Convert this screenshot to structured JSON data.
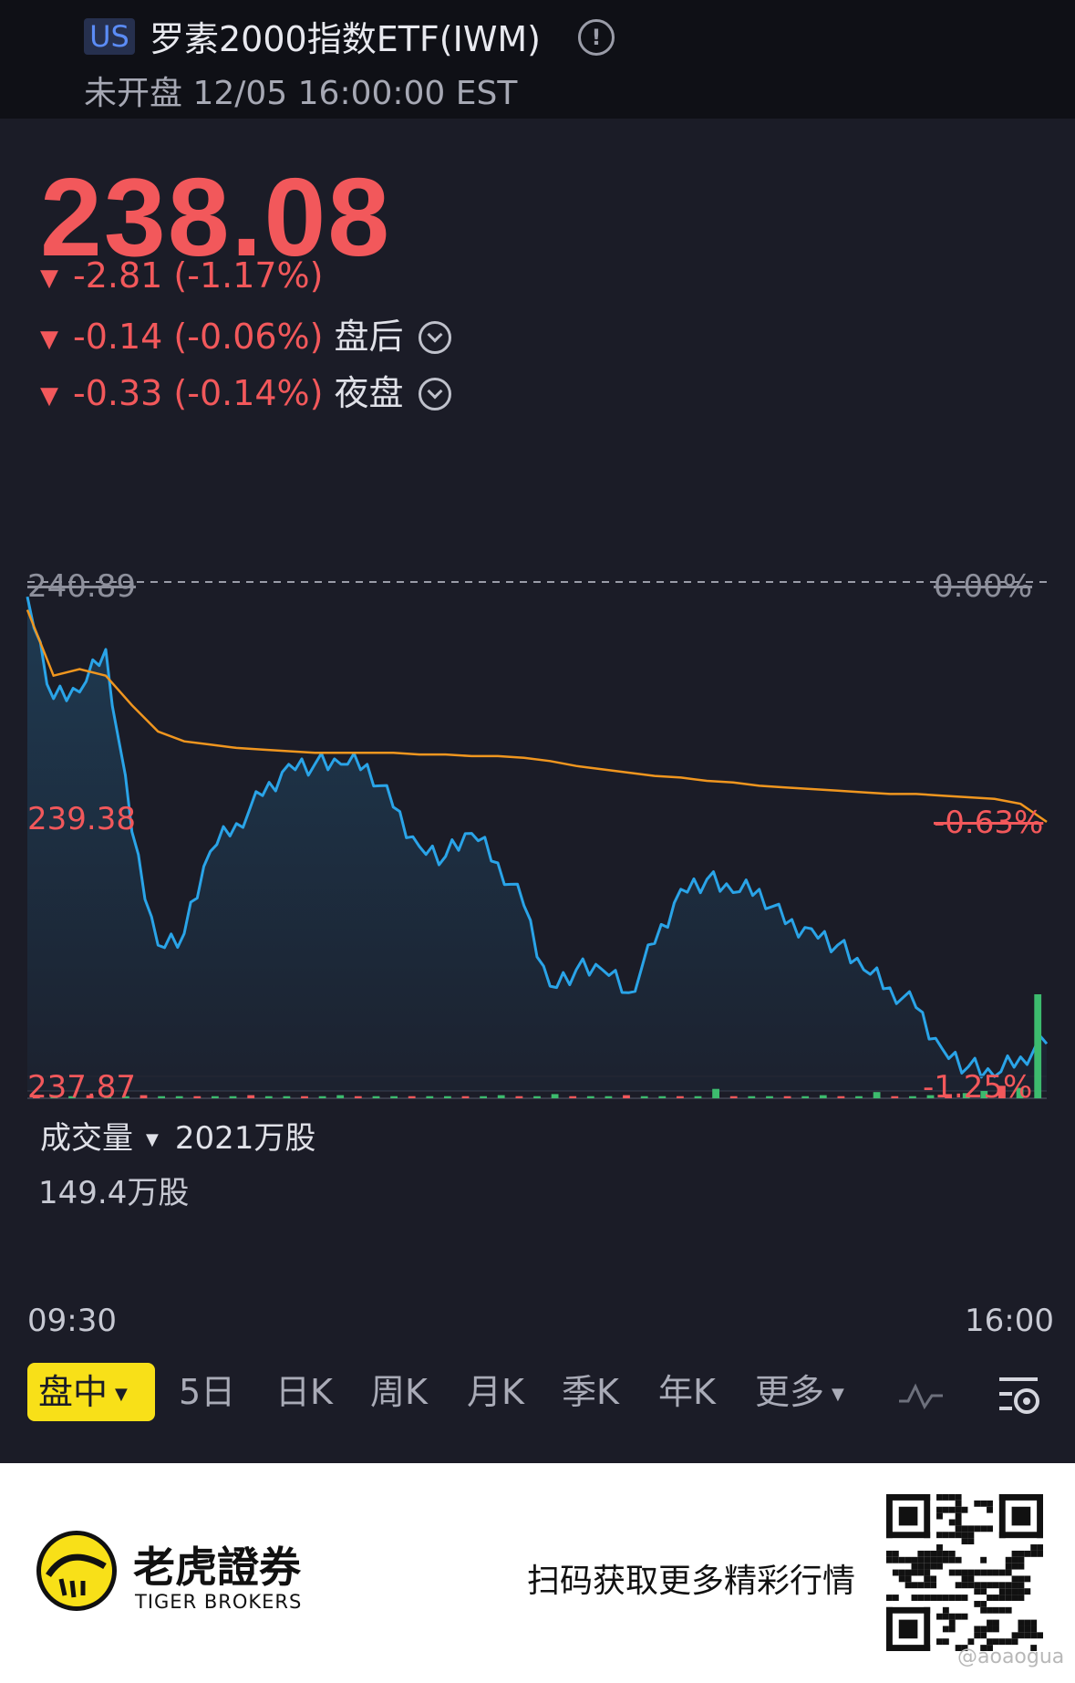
{
  "header": {
    "market_badge": "US",
    "title": "罗素2000指数ETF(IWM)",
    "info_icon": "info-circle-icon",
    "status_time": "未开盘 12/05 16:00:00 EST"
  },
  "quote": {
    "price": "238.08",
    "change": "-2.81 (-1.17%)",
    "after_hours_change": "-0.14 (-0.06%)",
    "after_hours_label": "盘后",
    "overnight_change": "-0.33 (-0.14%)",
    "overnight_label": "夜盘",
    "down_color": "#f2585b"
  },
  "chart_data": {
    "type": "line",
    "y_left_ticks": [
      "240.89",
      "239.38",
      "237.87"
    ],
    "y_right_ticks": [
      "0.00%",
      "-0.63%",
      "-1.25%"
    ],
    "ylim": [
      237.87,
      240.89
    ],
    "x_ticks": [
      "09:30",
      "16:00"
    ],
    "series": [
      {
        "color": "#2aa4e8",
        "x": [
          "09:30",
          "09:40",
          "09:50",
          "10:00",
          "10:10",
          "10:20",
          "10:30",
          "10:40",
          "10:50",
          "11:00",
          "11:10",
          "11:20",
          "11:30",
          "11:40",
          "11:50",
          "12:00",
          "12:10",
          "12:20",
          "12:30",
          "12:40",
          "12:50",
          "13:00",
          "13:10",
          "13:20",
          "13:30",
          "13:40",
          "13:50",
          "14:00",
          "14:10",
          "14:20",
          "14:30",
          "14:40",
          "14:50",
          "15:00",
          "15:10",
          "15:20",
          "15:30",
          "15:40",
          "15:50",
          "16:00"
        ],
        "values": [
          240.8,
          240.18,
          240.22,
          240.48,
          239.37,
          238.68,
          238.75,
          239.25,
          239.42,
          239.59,
          239.78,
          239.78,
          239.78,
          239.78,
          239.52,
          239.28,
          239.22,
          239.36,
          239.18,
          238.92,
          238.43,
          238.53,
          238.53,
          238.39,
          238.69,
          239.02,
          239.08,
          239.0,
          239.02,
          238.81,
          238.78,
          238.68,
          238.53,
          238.42,
          238.3,
          238.05,
          237.94,
          237.88,
          238.0,
          238.08
        ]
      },
      {
        "color": "#f0961f",
        "x": [
          "09:30",
          "09:40",
          "09:50",
          "10:00",
          "10:10",
          "10:20",
          "10:30",
          "10:40",
          "10:50",
          "11:00",
          "11:10",
          "11:20",
          "11:30",
          "11:40",
          "11:50",
          "12:00",
          "12:10",
          "12:20",
          "12:30",
          "12:40",
          "12:50",
          "13:00",
          "13:10",
          "13:20",
          "13:30",
          "13:40",
          "13:50",
          "14:00",
          "14:10",
          "14:20",
          "14:30",
          "14:40",
          "14:50",
          "15:00",
          "15:10",
          "15:20",
          "15:30",
          "15:40",
          "15:50",
          "16:00"
        ],
        "values": [
          240.72,
          240.32,
          240.36,
          240.32,
          240.14,
          239.98,
          239.92,
          239.9,
          239.88,
          239.87,
          239.86,
          239.85,
          239.85,
          239.85,
          239.85,
          239.84,
          239.84,
          239.83,
          239.83,
          239.82,
          239.8,
          239.77,
          239.75,
          239.73,
          239.71,
          239.7,
          239.68,
          239.67,
          239.65,
          239.64,
          239.63,
          239.62,
          239.61,
          239.6,
          239.6,
          239.59,
          239.58,
          239.57,
          239.54,
          239.43
        ]
      }
    ],
    "volume": {
      "label": "成交量",
      "total": "2021万股",
      "max_label": "149.4万股",
      "bars": [
        0.02,
        0.03,
        0.02,
        0.03,
        0.02,
        0.02,
        0.03,
        0.02,
        0.02,
        0.02,
        0.02,
        0.02,
        0.03,
        0.02,
        0.02,
        0.02,
        0.02,
        0.03,
        0.02,
        0.02,
        0.02,
        0.02,
        0.02,
        0.02,
        0.02,
        0.02,
        0.03,
        0.02,
        0.02,
        0.04,
        0.02,
        0.02,
        0.02,
        0.03,
        0.02,
        0.02,
        0.02,
        0.02,
        0.09,
        0.02,
        0.02,
        0.02,
        0.02,
        0.02,
        0.03,
        0.02,
        0.02,
        0.06,
        0.02,
        0.02,
        0.03,
        0.04,
        0.05,
        0.07,
        0.12,
        0.1,
        1.0
      ]
    }
  },
  "tabs": [
    {
      "label": "盘中",
      "active": true
    },
    {
      "label": "5日"
    },
    {
      "label": "日K"
    },
    {
      "label": "周K"
    },
    {
      "label": "月K"
    },
    {
      "label": "季K"
    },
    {
      "label": "年K"
    },
    {
      "label": "更多"
    }
  ],
  "toolbar_icons": [
    "indicator-wave-icon",
    "chart-settings-icon"
  ],
  "footer": {
    "brand_cn": "老虎證券",
    "brand_en": "TIGER BROKERS",
    "slogan": "扫码获取更多精彩行情",
    "watermark": "@aoaogua"
  }
}
